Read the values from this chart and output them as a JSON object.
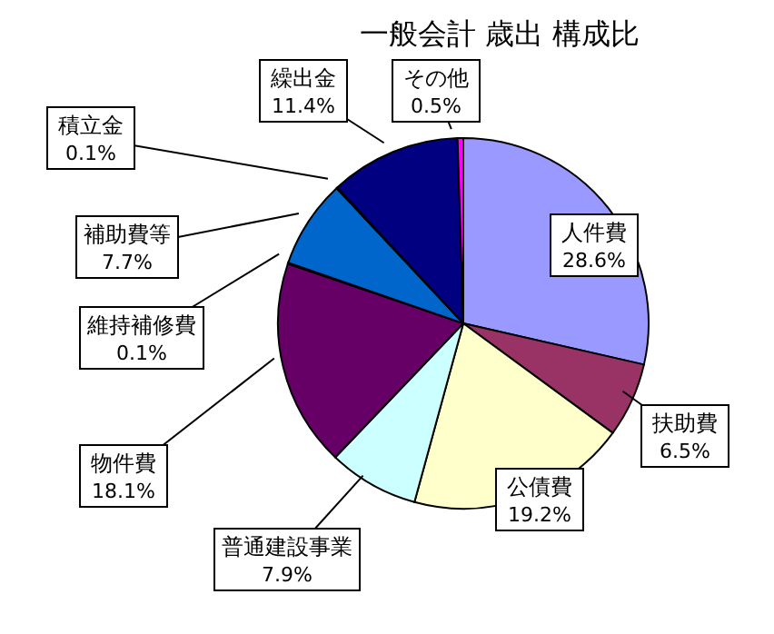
{
  "chart_data": {
    "type": "pie",
    "title": "一般会計 歳出 構成比",
    "categories": [
      "人件費",
      "扶助費",
      "公債費",
      "普通建設事業",
      "物件費",
      "維持補修費",
      "補助費等",
      "積立金",
      "繰出金",
      "その他"
    ],
    "values": [
      28.6,
      6.5,
      19.2,
      7.9,
      18.1,
      0.1,
      7.7,
      0.1,
      11.4,
      0.5
    ],
    "value_labels": [
      "28.6%",
      "6.5%",
      "19.2%",
      "7.9%",
      "18.1%",
      "0.1%",
      "7.7%",
      "0.1%",
      "11.4%",
      "0.5%"
    ],
    "colors": [
      "#9999ff",
      "#993366",
      "#ffffcc",
      "#ccffff",
      "#660066",
      "#ff8080",
      "#0066cc",
      "#ccccff",
      "#000080",
      "#ff00ff"
    ]
  }
}
